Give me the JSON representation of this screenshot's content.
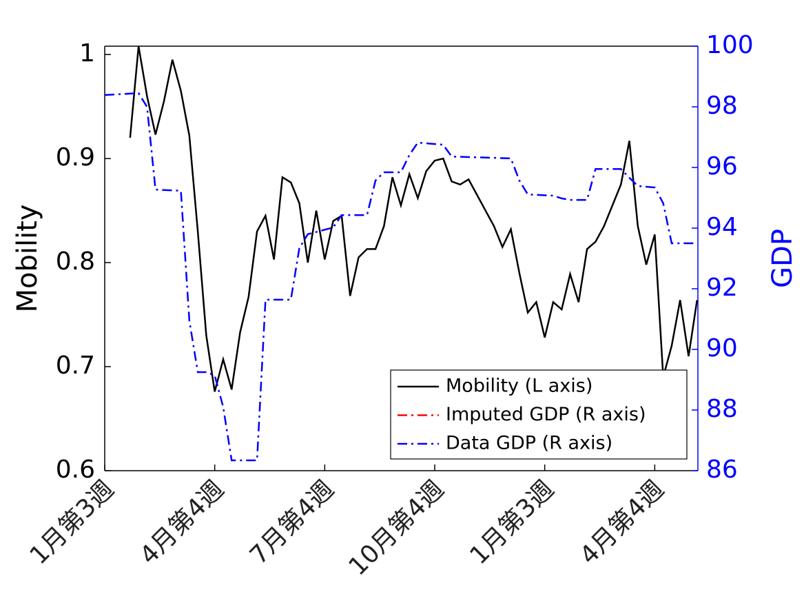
{
  "chart_data": {
    "type": "line",
    "y_label": "Mobility",
    "y2_label": "GDP",
    "xlim": [
      0,
      70.1
    ],
    "xticks": [
      {
        "value": 0,
        "label": "1月第3週"
      },
      {
        "value": 13,
        "label": "4月第4週"
      },
      {
        "value": 26,
        "label": "7月第4週"
      },
      {
        "value": 39,
        "label": "10月第4週"
      },
      {
        "value": 52,
        "label": "1月第3週"
      },
      {
        "value": 65,
        "label": "4月第4週"
      }
    ],
    "ylim": [
      0.6,
      1.008
    ],
    "yticks": [
      0.6,
      0.7,
      0.8,
      0.9,
      1
    ],
    "y2lim": [
      86,
      100
    ],
    "y2ticks": [
      86,
      88,
      90,
      92,
      94,
      96,
      98,
      100
    ],
    "legend_position": "lower right",
    "series": [
      {
        "name": "Mobility (L axis)",
        "color": "#000000",
        "dash": "solid",
        "axis": "y",
        "x": [
          3,
          4,
          5,
          6,
          7,
          8,
          9,
          10,
          11,
          12,
          13,
          14,
          15,
          16,
          17,
          18,
          19,
          20,
          21,
          22,
          23,
          24,
          25,
          26,
          27,
          28,
          29,
          30,
          31,
          32,
          33,
          34,
          35,
          36,
          37,
          38,
          39,
          40,
          41,
          42,
          43,
          44,
          45,
          46,
          47,
          48,
          49,
          50,
          51,
          52,
          53,
          54,
          55,
          56,
          57,
          58,
          59,
          60,
          61,
          62,
          63,
          64,
          65,
          66,
          67,
          68,
          69,
          70
        ],
        "values": [
          0.92,
          1.008,
          0.96,
          0.923,
          0.955,
          0.995,
          0.965,
          0.922,
          0.83,
          0.73,
          0.676,
          0.707,
          0.678,
          0.733,
          0.767,
          0.83,
          0.845,
          0.803,
          0.882,
          0.877,
          0.857,
          0.8,
          0.85,
          0.803,
          0.84,
          0.845,
          0.768,
          0.805,
          0.813,
          0.813,
          0.835,
          0.882,
          0.855,
          0.885,
          0.862,
          0.888,
          0.898,
          0.9,
          0.878,
          0.875,
          0.88,
          0.865,
          0.85,
          0.835,
          0.815,
          0.832,
          0.79,
          0.752,
          0.762,
          0.728,
          0.762,
          0.755,
          0.789,
          0.762,
          0.813,
          0.82,
          0.835,
          0.855,
          0.875,
          0.917,
          0.835,
          0.798,
          0.827,
          0.69,
          0.72,
          0.764,
          0.71,
          0.764
        ]
      },
      {
        "name": "Imputed GDP (R axis)",
        "color": "#ff0000",
        "dash": "dashdot",
        "axis": "y2",
        "x": [],
        "values": []
      },
      {
        "name": "Data GDP (R axis)",
        "color": "#0000ff",
        "dash": "dashdot",
        "axis": "y2",
        "x": [
          0,
          4,
          5,
          6,
          9,
          10,
          11,
          12,
          13,
          14,
          15,
          18,
          19,
          22,
          23,
          24,
          27,
          28,
          31,
          32,
          33,
          35,
          36,
          37,
          40,
          41,
          48,
          49,
          50,
          53,
          54,
          55,
          57,
          58,
          61,
          62,
          63,
          65,
          66,
          67,
          70
        ],
        "values": [
          98.39,
          98.45,
          98.0,
          95.27,
          95.23,
          90.95,
          89.25,
          89.25,
          89.14,
          88.1,
          86.34,
          86.34,
          91.64,
          91.64,
          93.34,
          93.8,
          94.02,
          94.43,
          94.43,
          95.57,
          95.84,
          95.84,
          96.41,
          96.82,
          96.75,
          96.36,
          96.3,
          95.57,
          95.11,
          95.07,
          94.98,
          94.93,
          94.93,
          95.95,
          95.95,
          95.66,
          95.39,
          95.34,
          94.82,
          93.5,
          93.5
        ]
      }
    ]
  }
}
